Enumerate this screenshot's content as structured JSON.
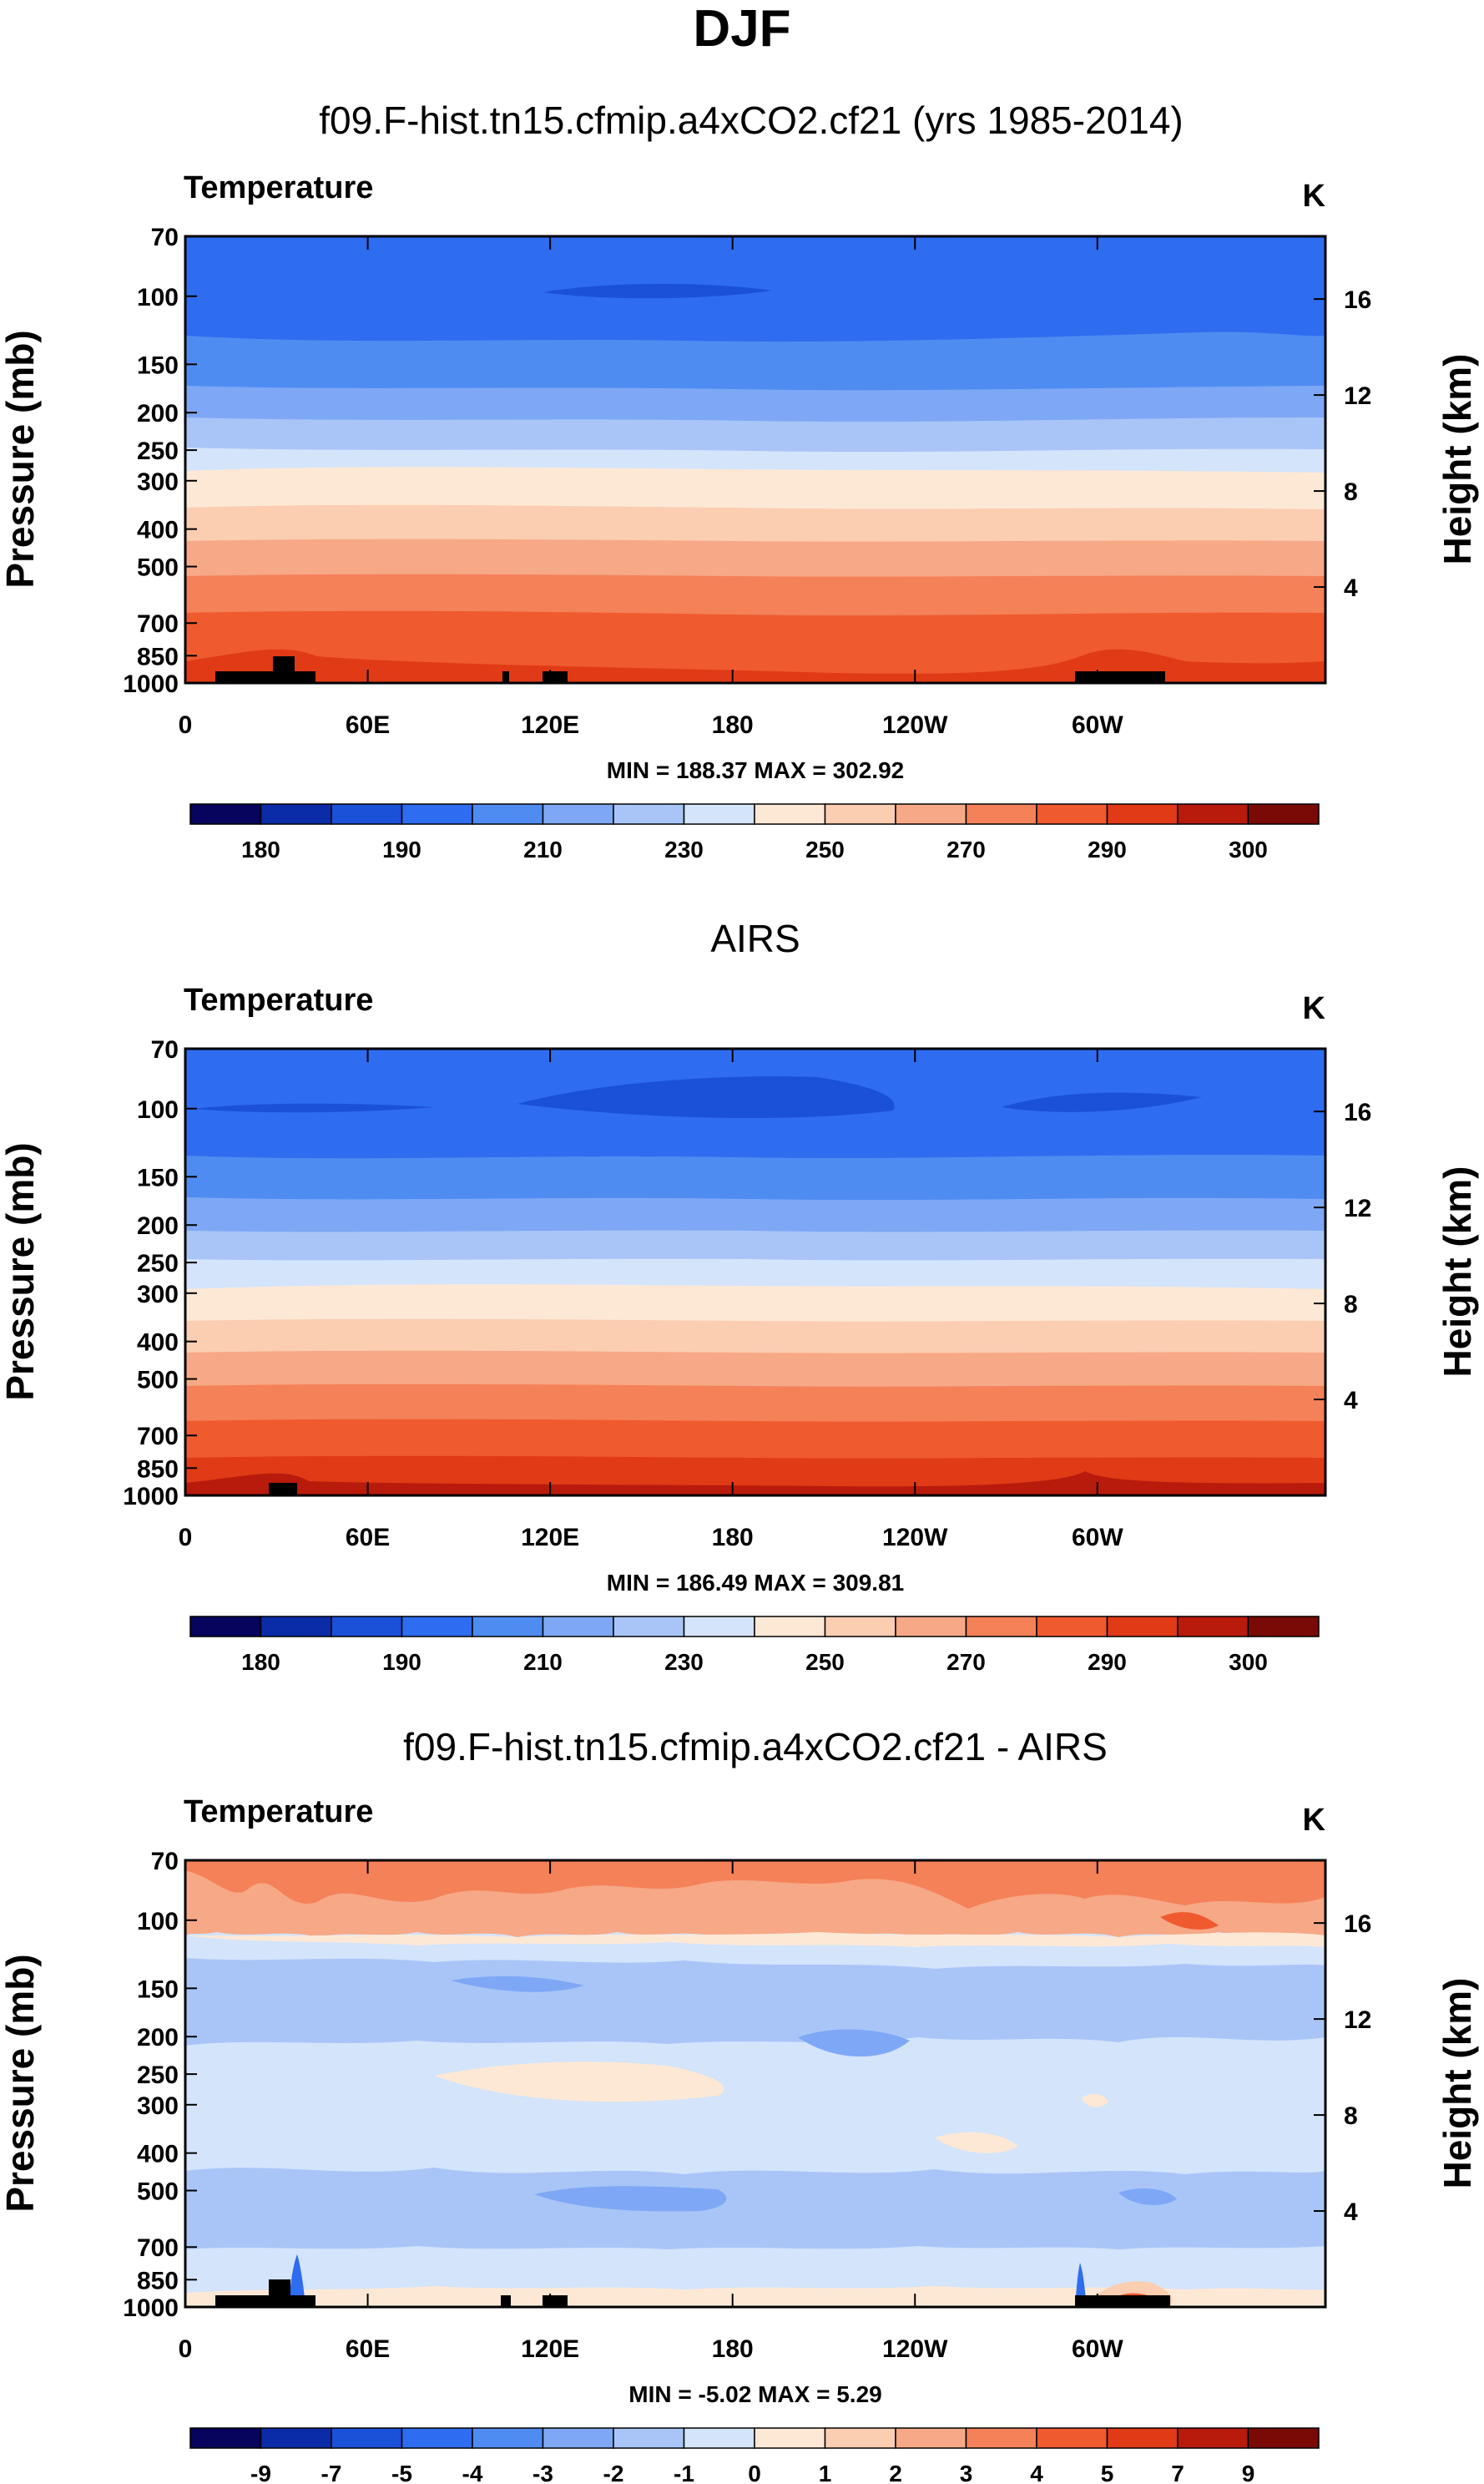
{
  "page": {
    "title": "DJF",
    "unit_right": "K",
    "y_axis_left_label": "Pressure (mb)",
    "y_axis_right_label": "Height (km)",
    "pressure_ticks": [
      "70",
      "100",
      "150",
      "200",
      "250",
      "300",
      "400",
      "500",
      "700",
      "850",
      "1000"
    ],
    "height_ticks": [
      "16",
      "12",
      "8",
      "4"
    ]
  },
  "colors": {
    "absolute_palette": [
      "#06045c",
      "#0b2ca8",
      "#1a51d8",
      "#2e6cf0",
      "#4f8cf2",
      "#7ea8f5",
      "#a9c5f7",
      "#d3e4fb",
      "#fde8d6",
      "#fbcdb1",
      "#f7a886",
      "#f48158",
      "#ef5a2e",
      "#e03a16",
      "#b81a0c",
      "#7a0a06"
    ],
    "diff_palette": [
      "#06045c",
      "#0b2ca8",
      "#1a51d8",
      "#2e6cf0",
      "#4f8cf2",
      "#7ea8f5",
      "#a9c5f7",
      "#d3e4fb",
      "#fde8d6",
      "#fbcdb1",
      "#f7a886",
      "#f48158",
      "#ef5a2e",
      "#e03a16",
      "#b81a0c",
      "#7a0a06"
    ],
    "topography": "#000000"
  },
  "chart_data": [
    {
      "type": "contour",
      "panel_title": "f09.F-hist.tn15.cfmip.a4xCO2.cf21 (yrs 1985-2014)",
      "variable": "Temperature",
      "units": "K",
      "x_tick_labels": [
        "0",
        "60E",
        "120E",
        "180",
        "120W",
        "60W"
      ],
      "x_ticks_deg": [
        0,
        60,
        120,
        180,
        240,
        300
      ],
      "x_range_deg": [
        0,
        375
      ],
      "stats_text": "MIN = 188.37  MAX = 302.92",
      "min": 188.37,
      "max": 302.92,
      "colorbar_labels": [
        "180",
        "190",
        "210",
        "230",
        "250",
        "270",
        "290",
        "300"
      ],
      "levels_pressure_mb": [
        70,
        100,
        150,
        200,
        250,
        300,
        400,
        500,
        700,
        850,
        1000
      ]
    },
    {
      "type": "contour",
      "panel_title": "AIRS",
      "variable": "Temperature",
      "units": "K",
      "x_tick_labels": [
        "0",
        "60E",
        "120E",
        "180",
        "120W",
        "60W"
      ],
      "x_ticks_deg": [
        0,
        60,
        120,
        180,
        240,
        300
      ],
      "x_range_deg": [
        0,
        375
      ],
      "stats_text": "MIN = 186.49  MAX = 309.81",
      "min": 186.49,
      "max": 309.81,
      "colorbar_labels": [
        "180",
        "190",
        "210",
        "230",
        "250",
        "270",
        "290",
        "300"
      ],
      "levels_pressure_mb": [
        70,
        100,
        150,
        200,
        250,
        300,
        400,
        500,
        700,
        850,
        1000
      ]
    },
    {
      "type": "contour",
      "panel_title": "f09.F-hist.tn15.cfmip.a4xCO2.cf21 - AIRS",
      "variable": "Temperature",
      "units": "K",
      "x_tick_labels": [
        "0",
        "60E",
        "120E",
        "180",
        "120W",
        "60W"
      ],
      "x_ticks_deg": [
        0,
        60,
        120,
        180,
        240,
        300
      ],
      "x_range_deg": [
        0,
        375
      ],
      "stats_text": "MIN = -5.02  MAX = 5.29",
      "min": -5.02,
      "max": 5.29,
      "colorbar_labels": [
        "-9",
        "-7",
        "-5",
        "-4",
        "-3",
        "-2",
        "-1",
        "0",
        "1",
        "2",
        "3",
        "4",
        "5",
        "7",
        "9"
      ],
      "levels_pressure_mb": [
        70,
        100,
        150,
        200,
        250,
        300,
        400,
        500,
        700,
        850,
        1000
      ]
    }
  ]
}
